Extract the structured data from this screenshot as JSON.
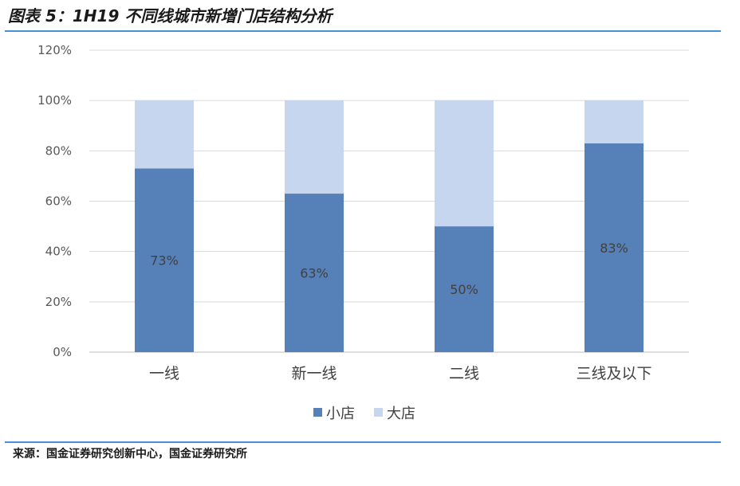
{
  "header": {
    "title": "图表 5：1H19 不同线城市新增门店结构分析"
  },
  "footer": {
    "source": "来源：国金证券研究创新中心，国金证券研究所"
  },
  "chart_data": {
    "type": "bar",
    "stacked": true,
    "categories": [
      "一线",
      "新一线",
      "二线",
      "三线及以下"
    ],
    "series": [
      {
        "name": "小店",
        "values": [
          73,
          63,
          50,
          83
        ],
        "color": "#5680b8",
        "labels": [
          "73%",
          "63%",
          "50%",
          "83%"
        ]
      },
      {
        "name": "大店",
        "values": [
          27,
          37,
          50,
          17
        ],
        "color": "#c5d6ee"
      }
    ],
    "yticks": [
      "0%",
      "20%",
      "40%",
      "60%",
      "80%",
      "100%",
      "120%"
    ],
    "ylim": [
      0,
      120
    ],
    "grid": true,
    "legend": "bottom-center"
  }
}
